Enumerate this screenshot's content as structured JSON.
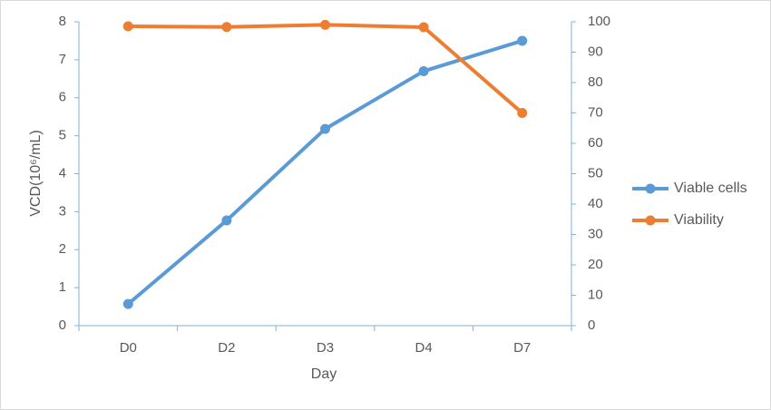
{
  "chart_data": {
    "type": "line",
    "categories": [
      "D0",
      "D2",
      "D3",
      "D4",
      "D7"
    ],
    "x_label": "Day",
    "y_label": "VCD(10⁶/mL)",
    "series": [
      {
        "name": "Viable cells",
        "color": "#5b9bd5",
        "values": [
          0.57,
          2.77,
          5.18,
          6.7,
          7.5
        ]
      },
      {
        "name": "Viability",
        "color": "#ed7d31",
        "axis": "y2",
        "values": [
          98.5,
          98.3,
          99,
          98.2,
          70
        ]
      }
    ],
    "ylim": [
      0,
      8
    ],
    "yticks": [
      0,
      1,
      2,
      3,
      4,
      5,
      6,
      7,
      8
    ],
    "y2lim": [
      0,
      100
    ],
    "y2ticks": [
      0,
      10,
      20,
      30,
      40,
      50,
      60,
      70,
      80,
      90,
      100
    ],
    "grid": false,
    "legend": "right"
  }
}
